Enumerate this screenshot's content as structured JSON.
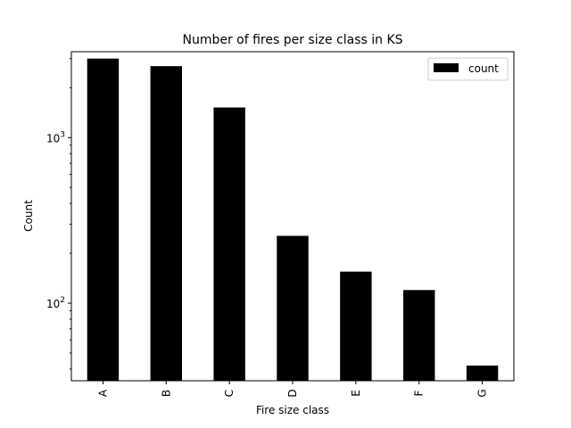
{
  "chart_data": {
    "type": "bar",
    "title": "Number of fires per size class in KS",
    "xlabel": "Fire size class",
    "ylabel": "Count",
    "categories": [
      "A",
      "B",
      "C",
      "D",
      "E",
      "F",
      "G"
    ],
    "series": [
      {
        "name": "count",
        "values": [
          3000,
          2700,
          1520,
          255,
          155,
          120,
          42
        ]
      }
    ],
    "yscale": "log",
    "ylim": [
      34,
      3300
    ],
    "yticks": [
      {
        "value": 100,
        "base": "10",
        "exp": "2"
      },
      {
        "value": 1000,
        "base": "10",
        "exp": "3"
      }
    ],
    "legend": {
      "position": "top-right"
    },
    "grid": false,
    "colors": {
      "bar": "#000000",
      "axis": "#000000",
      "background": "#ffffff"
    }
  }
}
